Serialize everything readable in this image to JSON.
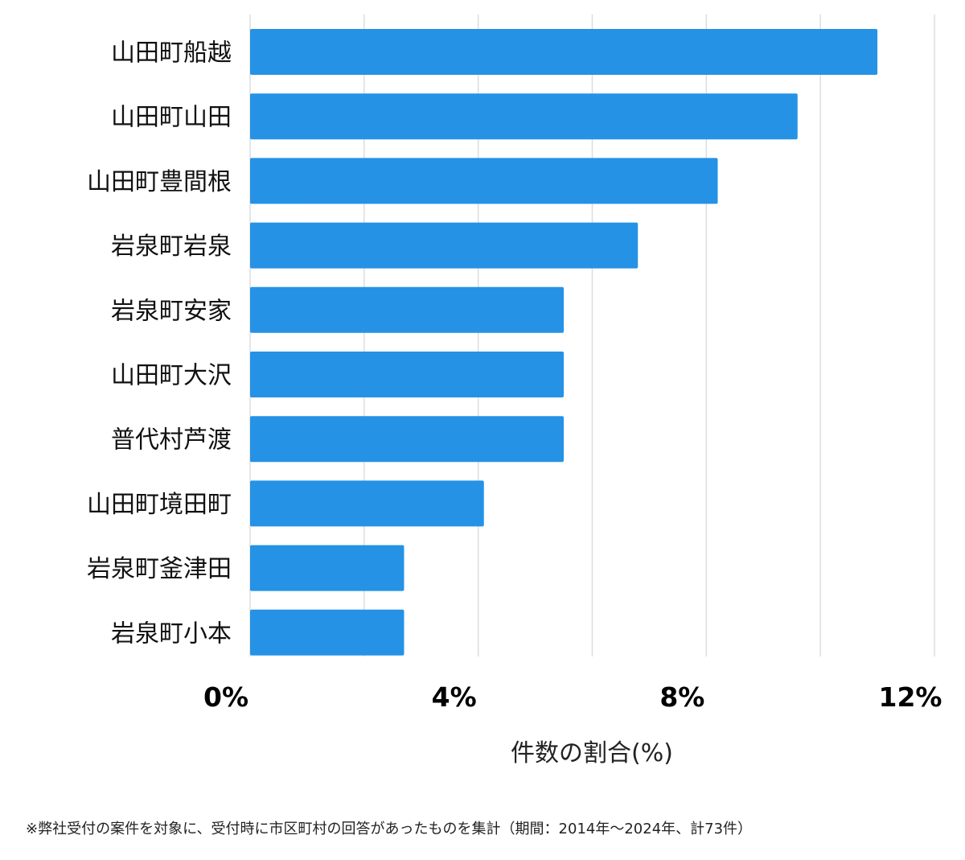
{
  "chart_data": {
    "type": "bar",
    "orientation": "horizontal",
    "categories": [
      "山田町船越",
      "山田町山田",
      "山田町豊間根",
      "岩泉町岩泉",
      "岩泉町安家",
      "山田町大沢",
      "普代村芦渡",
      "山田町境田町",
      "岩泉町釜津田",
      "岩泉町小本"
    ],
    "values": [
      11.0,
      9.6,
      8.2,
      6.8,
      5.5,
      5.5,
      5.5,
      4.1,
      2.7,
      2.7
    ],
    "xlim": [
      0,
      12
    ],
    "xticks": [
      0,
      4,
      8,
      12
    ],
    "xtick_labels": [
      "0%",
      "4%",
      "8%",
      "12%"
    ],
    "gridline_values": [
      0,
      2,
      4,
      6,
      8,
      10,
      12
    ],
    "xlabel": "件数の割合(%)",
    "ylabel": "",
    "title": "",
    "bar_color": "#2592e6",
    "grid_color": "#dddddd"
  },
  "footnote": "※弊社受付の案件を対象に、受付時に市区町村の回答があったものを集計（期間：2014年～2024年、計73件）"
}
